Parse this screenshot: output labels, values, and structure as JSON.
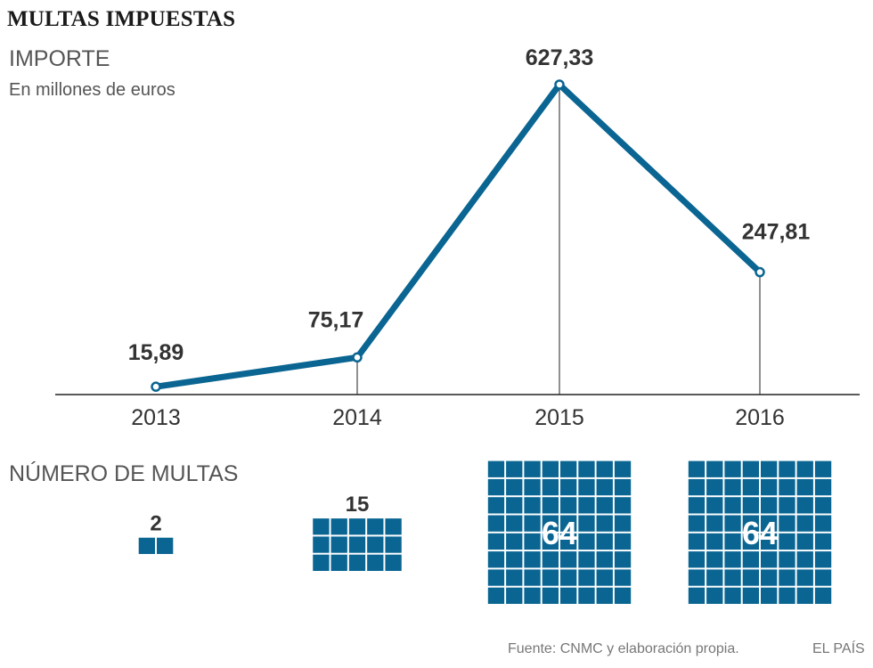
{
  "title": "MULTAS IMPUESTAS",
  "subtitle": "IMPORTE",
  "unit_label": "En millones de euros",
  "section_label": "NÚMERO DE MULTAS",
  "source": "Fuente: CNMC y elaboración propia.",
  "brand": "EL PAÍS",
  "colors": {
    "accent": "#0a6592",
    "text": "#333333",
    "muted": "#555555"
  },
  "chart_data": [
    {
      "type": "line",
      "title": "IMPORTE",
      "ylabel": "En millones de euros",
      "categories": [
        "2013",
        "2014",
        "2015",
        "2016"
      ],
      "values": [
        15.89,
        75.17,
        627.33,
        247.81
      ],
      "labels": [
        "15,89",
        "75,17",
        "627,33",
        "247,81"
      ],
      "ylim": [
        0,
        660
      ]
    },
    {
      "type": "bar",
      "title": "NÚMERO DE MULTAS",
      "categories": [
        "2013",
        "2014",
        "2015",
        "2016"
      ],
      "values": [
        2,
        15,
        64,
        64
      ],
      "labels": [
        "2",
        "15",
        "64",
        "64"
      ]
    }
  ]
}
